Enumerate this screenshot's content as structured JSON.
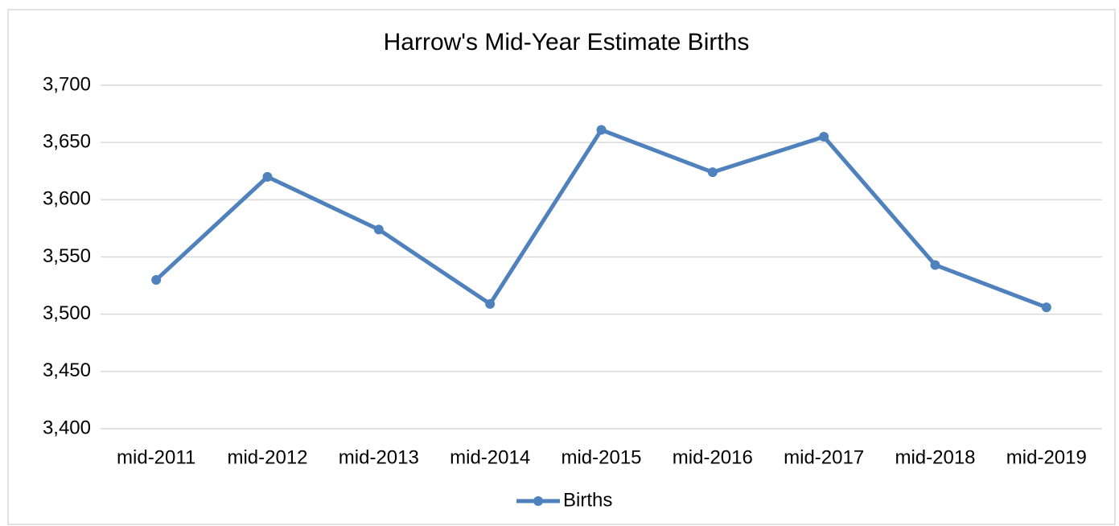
{
  "chart_data": {
    "type": "line",
    "title": "Harrow's Mid-Year Estimate Births",
    "categories": [
      "mid-2011",
      "mid-2012",
      "mid-2013",
      "mid-2014",
      "mid-2015",
      "mid-2016",
      "mid-2017",
      "mid-2018",
      "mid-2019"
    ],
    "series": [
      {
        "name": "Births",
        "color": "#4f81bd",
        "values": [
          3530,
          3620,
          3574,
          3509,
          3661,
          3624,
          3655,
          3543,
          3506
        ]
      }
    ],
    "ylim": [
      3400,
      3700
    ],
    "yticks": [
      {
        "value": 3400,
        "label": "3,400"
      },
      {
        "value": 3450,
        "label": "3,450"
      },
      {
        "value": 3500,
        "label": "3,500"
      },
      {
        "value": 3550,
        "label": "3,550"
      },
      {
        "value": 3600,
        "label": "3,600"
      },
      {
        "value": 3650,
        "label": "3,650"
      },
      {
        "value": 3700,
        "label": "3,700"
      }
    ],
    "grid": true,
    "legend": "bottom"
  }
}
